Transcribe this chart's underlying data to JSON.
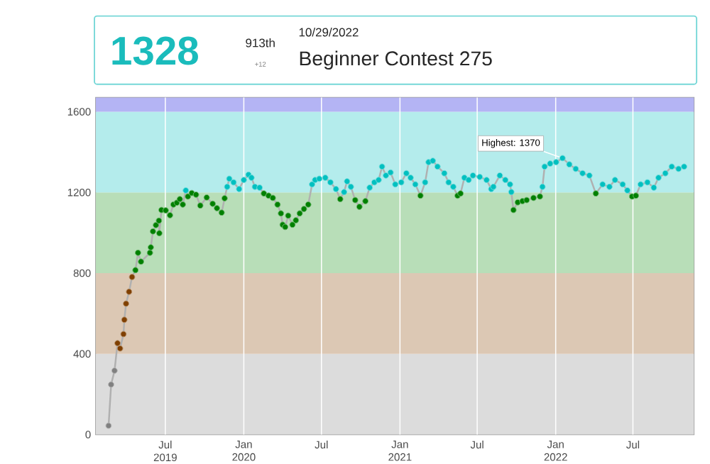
{
  "chart_data": {
    "type": "line",
    "title": "Beginner Contest 275",
    "subtitle": "10/29/2022",
    "annotations": [
      "1328",
      "913th",
      "+12",
      {
        "text": "Highest: 1370",
        "x": "2022-01-17",
        "y": 1370
      }
    ],
    "x": [
      "2019-02-18",
      "2019-02-24",
      "2019-03-04",
      "2019-03-11",
      "2019-03-17",
      "2019-03-25",
      "2019-03-27",
      "2019-03-31",
      "2019-04-07",
      "2019-04-14",
      "2019-04-22",
      "2019-04-28",
      "2019-05-05",
      "2019-05-26",
      "2019-05-28",
      "2019-06-02",
      "2019-06-09",
      "2019-06-16",
      "2019-06-17",
      "2019-06-22",
      "2019-07-02",
      "2019-07-12",
      "2019-07-20",
      "2019-07-28",
      "2019-08-04",
      "2019-08-11",
      "2019-08-18",
      "2019-08-23",
      "2019-09-01",
      "2019-09-11",
      "2019-09-21",
      "2019-10-06",
      "2019-10-20",
      "2019-10-30",
      "2019-11-10",
      "2019-11-17",
      "2019-11-23",
      "2019-11-28",
      "2019-12-08",
      "2019-12-21",
      "2020-01-01",
      "2020-01-12",
      "2020-01-19",
      "2020-01-27",
      "2020-02-07",
      "2020-02-17",
      "2020-02-28",
      "2020-03-09",
      "2020-03-20",
      "2020-03-28",
      "2020-04-01",
      "2020-04-07",
      "2020-04-14",
      "2020-04-24",
      "2020-05-02",
      "2020-05-11",
      "2020-05-21",
      "2020-05-31",
      "2020-06-09",
      "2020-06-16",
      "2020-06-26",
      "2020-07-10",
      "2020-07-22",
      "2020-08-04",
      "2020-08-14",
      "2020-08-23",
      "2020-08-30",
      "2020-09-08",
      "2020-09-18",
      "2020-09-28",
      "2020-10-12",
      "2020-10-22",
      "2020-11-02",
      "2020-11-12",
      "2020-11-20",
      "2020-11-29",
      "2020-12-10",
      "2020-12-21",
      "2021-01-04",
      "2021-01-16",
      "2021-01-26",
      "2021-02-06",
      "2021-02-18",
      "2021-03-01",
      "2021-03-09",
      "2021-03-19",
      "2021-03-30",
      "2021-04-15",
      "2021-04-25",
      "2021-05-06",
      "2021-05-16",
      "2021-05-23",
      "2021-06-01",
      "2021-06-11",
      "2021-06-21",
      "2021-07-07",
      "2021-07-23",
      "2021-08-03",
      "2021-08-08",
      "2021-08-23",
      "2021-09-05",
      "2021-09-16",
      "2021-09-19",
      "2021-09-24",
      "2021-10-04",
      "2021-10-15",
      "2021-10-25",
      "2021-11-10",
      "2021-11-25",
      "2021-12-01",
      "2021-12-06",
      "2021-12-19",
      "2022-01-02",
      "2022-01-17",
      "2022-02-02",
      "2022-02-17",
      "2022-03-05",
      "2022-03-21",
      "2022-04-05",
      "2022-04-21",
      "2022-05-07",
      "2022-05-20",
      "2022-06-07",
      "2022-06-18",
      "2022-06-29",
      "2022-07-08",
      "2022-07-19",
      "2022-08-04",
      "2022-08-19",
      "2022-08-30",
      "2022-09-15",
      "2022-09-30",
      "2022-10-16",
      "2022-10-29"
    ],
    "series": [
      {
        "color": "#b0b0b0",
        "marker": "circle",
        "values": [
          44,
          248,
          317,
          453,
          427,
          498,
          569,
          649,
          708,
          781,
          815,
          901,
          857,
          901,
          928,
          1007,
          1038,
          1060,
          998,
          1113,
          1111,
          1087,
          1140,
          1149,
          1167,
          1140,
          1210,
          1180,
          1197,
          1189,
          1135,
          1175,
          1144,
          1122,
          1100,
          1171,
          1228,
          1268,
          1250,
          1217,
          1262,
          1288,
          1273,
          1228,
          1224,
          1195,
          1184,
          1173,
          1140,
          1096,
          1040,
          1029,
          1085,
          1040,
          1062,
          1096,
          1118,
          1140,
          1240,
          1262,
          1268,
          1273,
          1250,
          1217,
          1167,
          1202,
          1255,
          1228,
          1162,
          1129,
          1157,
          1224,
          1250,
          1262,
          1328,
          1284,
          1299,
          1240,
          1250,
          1295,
          1273,
          1240,
          1184,
          1250,
          1350,
          1357,
          1328,
          1295,
          1250,
          1228,
          1184,
          1195,
          1273,
          1262,
          1284,
          1277,
          1262,
          1217,
          1228,
          1284,
          1262,
          1240,
          1202,
          1113,
          1151,
          1157,
          1162,
          1173,
          1180,
          1228,
          1328,
          1343,
          1350,
          1370,
          1339,
          1317,
          1295,
          1284,
          1195,
          1240,
          1228,
          1262,
          1240,
          1210,
          1180,
          1184,
          1240,
          1250,
          1224,
          1273,
          1295,
          1328,
          1317,
          1328
        ],
        "colors": [
          "#808080",
          "#808080",
          "#808080",
          "#804000",
          "#804000",
          "#804000",
          "#804000",
          "#804000",
          "#804000",
          "#804000",
          "#008000",
          "#008000",
          "#008000",
          "#008000",
          "#008000",
          "#008000",
          "#008000",
          "#008000",
          "#008000",
          "#008000",
          "#008000",
          "#008000",
          "#008000",
          "#008000",
          "#008000",
          "#008000",
          "#00c0c0",
          "#008000",
          "#008000",
          "#008000",
          "#008000",
          "#008000",
          "#008000",
          "#008000",
          "#008000",
          "#008000",
          "#00c0c0",
          "#00c0c0",
          "#00c0c0",
          "#00c0c0",
          "#00c0c0",
          "#00c0c0",
          "#00c0c0",
          "#00c0c0",
          "#00c0c0",
          "#008000",
          "#008000",
          "#008000",
          "#008000",
          "#008000",
          "#008000",
          "#008000",
          "#008000",
          "#008000",
          "#008000",
          "#008000",
          "#008000",
          "#008000",
          "#00c0c0",
          "#00c0c0",
          "#00c0c0",
          "#00c0c0",
          "#00c0c0",
          "#00c0c0",
          "#008000",
          "#00c0c0",
          "#00c0c0",
          "#00c0c0",
          "#008000",
          "#008000",
          "#008000",
          "#00c0c0",
          "#00c0c0",
          "#00c0c0",
          "#00c0c0",
          "#00c0c0",
          "#00c0c0",
          "#00c0c0",
          "#00c0c0",
          "#00c0c0",
          "#00c0c0",
          "#00c0c0",
          "#008000",
          "#00c0c0",
          "#00c0c0",
          "#00c0c0",
          "#00c0c0",
          "#00c0c0",
          "#00c0c0",
          "#00c0c0",
          "#008000",
          "#008000",
          "#00c0c0",
          "#00c0c0",
          "#00c0c0",
          "#00c0c0",
          "#00c0c0",
          "#00c0c0",
          "#00c0c0",
          "#00c0c0",
          "#00c0c0",
          "#00c0c0",
          "#00c0c0",
          "#008000",
          "#008000",
          "#008000",
          "#008000",
          "#008000",
          "#008000",
          "#00c0c0",
          "#00c0c0",
          "#00c0c0",
          "#00c0c0",
          "#00c0c0",
          "#00c0c0",
          "#00c0c0",
          "#00c0c0",
          "#00c0c0",
          "#008000",
          "#00c0c0",
          "#00c0c0",
          "#00c0c0",
          "#00c0c0",
          "#00c0c0",
          "#008000",
          "#008000",
          "#00c0c0",
          "#00c0c0",
          "#00c0c0",
          "#00c0c0",
          "#00c0c0",
          "#00c0c0",
          "#00c0c0",
          "#00c0c0"
        ]
      }
    ],
    "xlim": [
      "2019-01-19",
      "2022-11-21"
    ],
    "xticks": [
      {
        "value": "2019-07-01",
        "label": "Jul 2019"
      },
      {
        "value": "2020-01-01",
        "label": "Jan 2020"
      },
      {
        "value": "2020-07-01",
        "label": "Jul"
      },
      {
        "value": "2021-01-01",
        "label": "Jan 2021"
      },
      {
        "value": "2021-07-01",
        "label": "Jul"
      },
      {
        "value": "2022-01-01",
        "label": "Jan 2022"
      },
      {
        "value": "2022-07-01",
        "label": "Jul"
      }
    ],
    "ylim": [
      0,
      1670
    ],
    "yticks": [
      0,
      400,
      800,
      1200,
      1600
    ],
    "bands": [
      {
        "axis": "y",
        "from": 0,
        "to": 400,
        "color": "#dcdcdc"
      },
      {
        "axis": "y",
        "from": 400,
        "to": 800,
        "color": "#dcc8b4"
      },
      {
        "axis": "y",
        "from": 800,
        "to": 1200,
        "color": "#b8deb8"
      },
      {
        "axis": "y",
        "from": 1200,
        "to": 1600,
        "color": "#b4ecec"
      },
      {
        "axis": "y",
        "from": 1600,
        "to": 1670,
        "color": "#b4b4f4"
      }
    ],
    "grid": "x"
  }
}
